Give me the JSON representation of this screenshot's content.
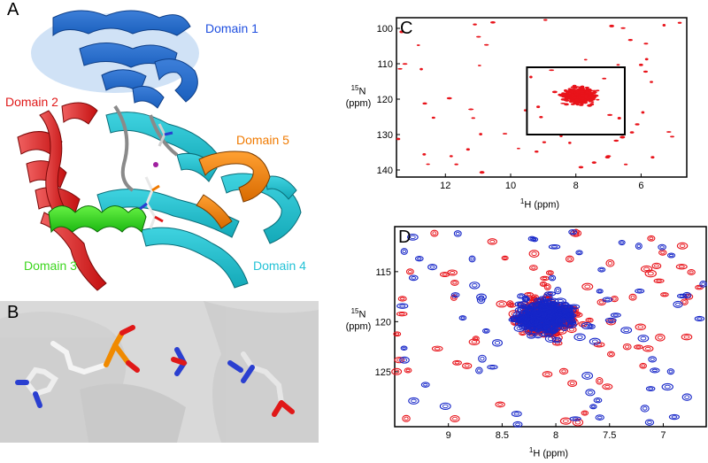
{
  "panels": {
    "A": {
      "letter": "A",
      "domains": [
        {
          "name": "Domain 1",
          "color": "#1f4fe0"
        },
        {
          "name": "Domain 2",
          "color": "#e01818"
        },
        {
          "name": "Domain 3",
          "color": "#3cd61e"
        },
        {
          "name": "Domain 4",
          "color": "#23c2d6"
        },
        {
          "name": "Domain 5",
          "color": "#f07a00"
        }
      ]
    },
    "B": {
      "letter": "B"
    },
    "C": {
      "letter": "C"
    },
    "D": {
      "letter": "D"
    }
  },
  "chart_data": [
    {
      "panel": "C",
      "type": "scatter",
      "xlabel_sup": "1",
      "xlabel": "H (ppm)",
      "ylabel_sup": "15",
      "ylabel": "N",
      "ylabel_unit": "(ppm)",
      "x_ticks": [
        12,
        10,
        8,
        6
      ],
      "y_ticks": [
        100,
        110,
        120,
        130,
        140
      ],
      "xlim": [
        13.5,
        4.6
      ],
      "ylim": [
        97,
        142
      ],
      "x_reversed": true,
      "y_reversed": true,
      "zoom_box": {
        "x": [
          9.5,
          6.5
        ],
        "y": [
          111,
          130
        ]
      },
      "series": [
        {
          "color": "#e8131a"
        }
      ]
    },
    {
      "panel": "D",
      "type": "scatter",
      "xlabel_sup": "1",
      "xlabel": "H (ppm)",
      "ylabel_sup": "15",
      "ylabel": "N",
      "ylabel_unit": "(ppm)",
      "x_ticks": [
        9,
        8.5,
        8,
        7.5,
        7
      ],
      "y_ticks": [
        115,
        120,
        125
      ],
      "xlim": [
        9.5,
        6.6
      ],
      "ylim": [
        110.5,
        130.5
      ],
      "x_reversed": true,
      "y_reversed": true,
      "series": [
        {
          "color": "#e8131a"
        },
        {
          "color": "#1626c8"
        }
      ]
    }
  ]
}
